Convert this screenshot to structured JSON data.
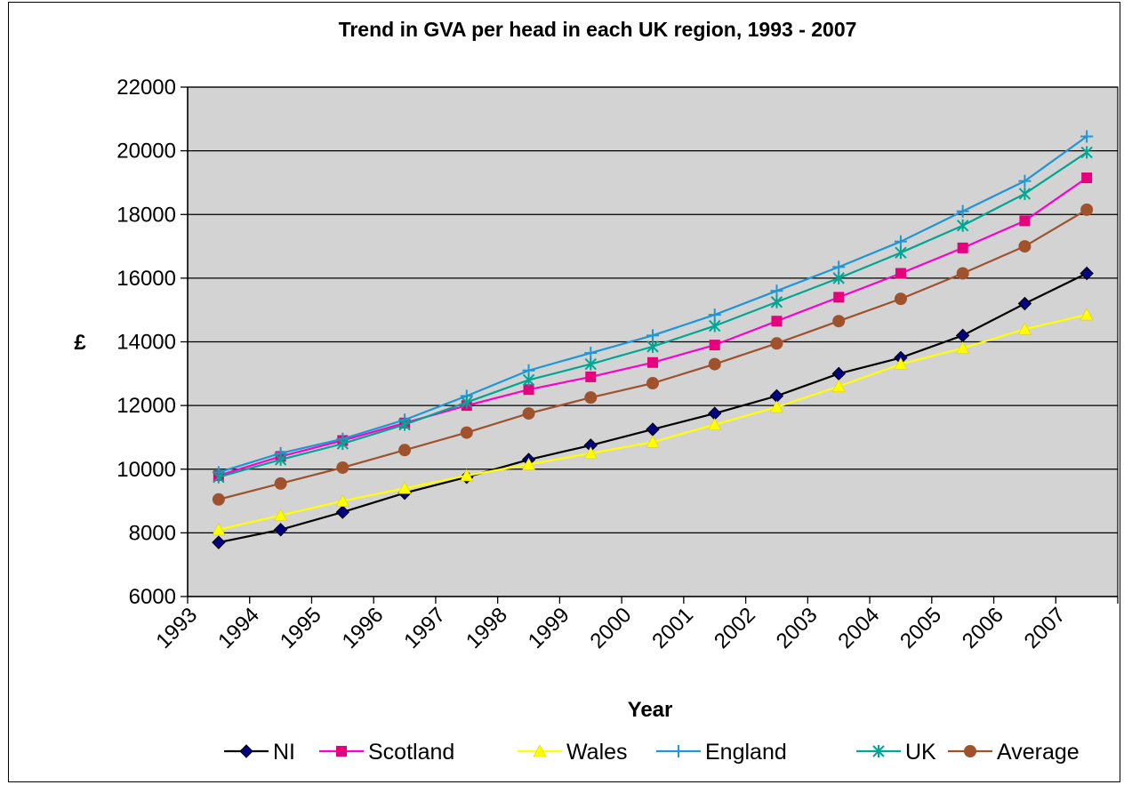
{
  "chart_data": {
    "type": "line",
    "title": "Trend in GVA per head in each UK region, 1993 - 2007",
    "xlabel": "Year",
    "ylabel": "£",
    "ylim": [
      6000,
      22000
    ],
    "yticks": [
      6000,
      8000,
      10000,
      12000,
      14000,
      16000,
      18000,
      20000,
      22000
    ],
    "categories": [
      "1993",
      "1994",
      "1995",
      "1996",
      "1997",
      "1998",
      "1999",
      "2000",
      "2001",
      "2002",
      "2003",
      "2004",
      "2005",
      "2006",
      "2007"
    ],
    "grid": true,
    "legend_position": "bottom",
    "plot_background": "#d3d3d3",
    "series": [
      {
        "name": "NI",
        "color": "#000000",
        "marker": "diamond",
        "marker_fill": "#000080",
        "values": [
          7700,
          8100,
          8650,
          9250,
          9750,
          10300,
          10750,
          11250,
          11750,
          12300,
          13000,
          13500,
          14200,
          15200,
          16150
        ]
      },
      {
        "name": "Scotland",
        "color": "#ff00cc",
        "marker": "square",
        "marker_fill": "#e6007e",
        "values": [
          9800,
          10400,
          10900,
          11450,
          12000,
          12500,
          12900,
          13350,
          13900,
          14650,
          15400,
          16150,
          16950,
          17800,
          19150
        ]
      },
      {
        "name": "Wales",
        "color": "#ffff00",
        "marker": "triangle",
        "marker_fill": "#ffff00",
        "values": [
          8100,
          8550,
          9000,
          9400,
          9800,
          10150,
          10500,
          10850,
          11400,
          11950,
          12600,
          13300,
          13800,
          14400,
          14850
        ]
      },
      {
        "name": "England",
        "color": "#1f96d6",
        "marker": "plus",
        "marker_fill": "#1f96d6",
        "values": [
          9900,
          10500,
          10950,
          11550,
          12300,
          13100,
          13650,
          14200,
          14850,
          15600,
          16350,
          17150,
          18100,
          19050,
          20450
        ]
      },
      {
        "name": "UK",
        "color": "#00a693",
        "marker": "asterisk",
        "marker_fill": "#00a693",
        "values": [
          9750,
          10300,
          10800,
          11400,
          12100,
          12800,
          13300,
          13850,
          14500,
          15250,
          16000,
          16800,
          17650,
          18650,
          19950
        ]
      },
      {
        "name": "Average",
        "color": "#a0522d",
        "marker": "circle",
        "marker_fill": "#a0522d",
        "values": [
          9050,
          9550,
          10050,
          10600,
          11150,
          11750,
          12250,
          12700,
          13300,
          13950,
          14650,
          15350,
          16150,
          17000,
          18150
        ]
      }
    ]
  }
}
